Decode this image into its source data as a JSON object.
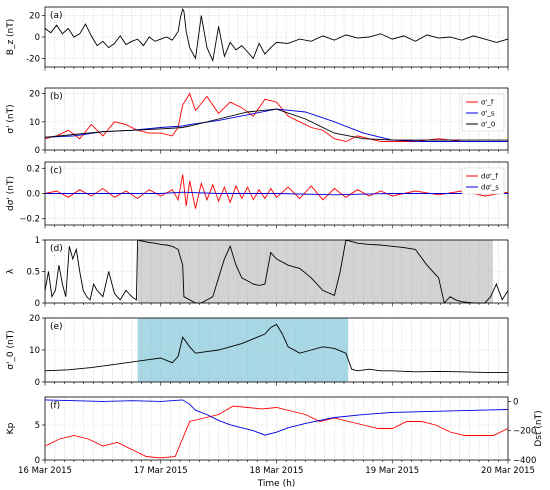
{
  "figure": {
    "shared_x": {
      "label": "Time (h)",
      "range_days": [
        0,
        4
      ],
      "tick_labels": [
        "16 Mar 2015",
        "17 Mar 2015",
        "18 Mar 2015",
        "19 Mar 2015",
        "20 Mar 2015"
      ],
      "tick_values_days": [
        0,
        1,
        2,
        3,
        4
      ],
      "minor_gridlines": "every 2 hours, dotted gray",
      "event_marker_day": 1.19,
      "event_marker_color": "#cc00cc"
    },
    "colors": {
      "red": "#ff0000",
      "blue": "#0000dd",
      "black": "#000000",
      "gray_shade": "#d3d3d3",
      "blue_shade": "#a8d8e6",
      "magenta": "#cc00cc"
    }
  },
  "chart_data": [
    {
      "panel": "(a)",
      "type": "line",
      "ylabel": "B_z (nT)",
      "ylim": [
        -28,
        28
      ],
      "yticks": [
        -20,
        0,
        20
      ],
      "grid": true,
      "series": [
        {
          "color": "#000000",
          "x": [
            0.0,
            0.05,
            0.1,
            0.15,
            0.2,
            0.25,
            0.3,
            0.35,
            0.4,
            0.45,
            0.5,
            0.55,
            0.6,
            0.65,
            0.7,
            0.75,
            0.8,
            0.85,
            0.9,
            0.95,
            1.0,
            1.05,
            1.1,
            1.15,
            1.17,
            1.19,
            1.2,
            1.22,
            1.25,
            1.3,
            1.35,
            1.4,
            1.45,
            1.5,
            1.55,
            1.6,
            1.65,
            1.7,
            1.75,
            1.8,
            1.85,
            1.9,
            1.95,
            2.0,
            2.1,
            2.2,
            2.3,
            2.4,
            2.5,
            2.6,
            2.7,
            2.8,
            2.9,
            3.0,
            3.1,
            3.2,
            3.3,
            3.4,
            3.5,
            3.6,
            3.7,
            3.8,
            3.9,
            4.0
          ],
          "values": [
            8,
            4,
            11,
            3,
            8,
            0,
            3,
            12,
            1,
            -8,
            -4,
            -10,
            -6,
            1,
            -7,
            -4,
            -2,
            -8,
            0,
            -4,
            -2,
            0,
            -3,
            5,
            18,
            26,
            24,
            5,
            -10,
            -20,
            20,
            -10,
            -22,
            10,
            -18,
            -5,
            -12,
            -8,
            -14,
            -20,
            -6,
            -16,
            -10,
            -5,
            -6,
            -2,
            -4,
            1,
            -3,
            2,
            -1,
            0,
            3,
            -2,
            1,
            -4,
            2,
            -1,
            0,
            -3,
            1,
            -2,
            -5,
            -2
          ]
        }
      ]
    },
    {
      "panel": "(b)",
      "type": "line",
      "ylabel": "σ' (nT)",
      "ylim": [
        0,
        22
      ],
      "yticks": [
        0,
        10,
        20
      ],
      "grid": true,
      "legend_position": "top-right",
      "legend": [
        "σ'_f",
        "σ'_s",
        "σ'_0"
      ],
      "series": [
        {
          "name": "σ'_f",
          "color": "#ff0000",
          "x": [
            0.0,
            0.1,
            0.2,
            0.3,
            0.4,
            0.5,
            0.6,
            0.7,
            0.8,
            0.9,
            1.0,
            1.1,
            1.15,
            1.19,
            1.25,
            1.3,
            1.4,
            1.5,
            1.6,
            1.7,
            1.8,
            1.9,
            2.0,
            2.1,
            2.2,
            2.3,
            2.4,
            2.5,
            2.6,
            2.7,
            2.8,
            2.9,
            3.0,
            3.2,
            3.4,
            3.6,
            3.8,
            4.0
          ],
          "values": [
            4,
            5,
            7,
            4,
            9,
            5,
            10,
            9,
            7,
            6,
            6,
            5,
            8,
            16,
            20,
            14,
            19,
            13,
            17,
            15,
            12,
            18,
            17,
            12,
            10,
            8,
            7,
            4,
            3,
            5,
            4,
            3,
            3,
            3,
            4,
            3,
            3,
            3
          ]
        },
        {
          "name": "σ'_s",
          "color": "#0000dd",
          "x": [
            0.0,
            0.25,
            0.5,
            0.75,
            1.0,
            1.19,
            1.25,
            1.5,
            1.75,
            2.0,
            2.25,
            2.5,
            2.75,
            3.0,
            3.25,
            3.5,
            3.75,
            4.0
          ],
          "values": [
            4.5,
            5,
            6.5,
            7,
            8,
            8.5,
            9,
            10.5,
            12.5,
            14.5,
            13.5,
            10,
            6,
            3.5,
            3,
            3,
            3,
            3
          ]
        },
        {
          "name": "σ'_0",
          "color": "#000000",
          "x": [
            0.0,
            0.25,
            0.5,
            0.75,
            1.0,
            1.19,
            1.25,
            1.5,
            1.75,
            2.0,
            2.25,
            2.5,
            2.75,
            3.0,
            3.25,
            3.5,
            3.75,
            4.0
          ],
          "values": [
            4.5,
            5.5,
            6.5,
            7,
            7.5,
            8,
            8.5,
            11,
            13.5,
            14.5,
            11,
            6,
            4,
            3.5,
            3.5,
            3.5,
            3.5,
            3.5
          ]
        }
      ]
    },
    {
      "panel": "(c)",
      "type": "line",
      "ylabel": "dσ' (nT)",
      "ylim": [
        -0.25,
        0.25
      ],
      "yticks": [
        -0.2,
        0.0,
        0.2
      ],
      "ytick_labels": [
        "−0.2",
        "0.0",
        "0.2"
      ],
      "grid": true,
      "legend_position": "top-right",
      "legend": [
        "dσ'_f",
        "dσ'_s"
      ],
      "series": [
        {
          "name": "dσ'_f",
          "color": "#ff0000",
          "x": [
            0.0,
            0.1,
            0.2,
            0.3,
            0.4,
            0.5,
            0.6,
            0.7,
            0.8,
            0.9,
            1.0,
            1.1,
            1.15,
            1.19,
            1.22,
            1.25,
            1.3,
            1.35,
            1.4,
            1.45,
            1.5,
            1.55,
            1.6,
            1.65,
            1.7,
            1.75,
            1.8,
            1.85,
            1.9,
            1.95,
            2.0,
            2.1,
            2.2,
            2.3,
            2.4,
            2.5,
            2.6,
            2.7,
            2.8,
            2.9,
            3.0,
            3.2,
            3.4,
            3.6,
            3.8,
            4.0
          ],
          "values": [
            0.0,
            0.02,
            -0.03,
            0.03,
            -0.02,
            0.04,
            -0.03,
            0.02,
            -0.04,
            0.03,
            -0.02,
            0.03,
            -0.05,
            0.15,
            -0.1,
            0.1,
            -0.12,
            0.08,
            -0.05,
            0.07,
            -0.06,
            0.05,
            -0.07,
            0.06,
            -0.04,
            0.05,
            -0.05,
            0.03,
            -0.04,
            0.04,
            -0.03,
            0.05,
            -0.04,
            0.06,
            -0.05,
            0.04,
            -0.03,
            0.03,
            -0.02,
            0.02,
            -0.02,
            0.02,
            -0.01,
            0.02,
            -0.02,
            0.01
          ]
        },
        {
          "name": "dσ'_s",
          "color": "#0000dd",
          "x": [
            0.0,
            0.5,
            1.0,
            1.19,
            1.5,
            2.0,
            2.5,
            3.0,
            3.5,
            4.0
          ],
          "values": [
            0.0,
            0.0,
            0.0,
            0.01,
            0.0,
            0.0,
            -0.01,
            0.0,
            0.0,
            0.0
          ]
        }
      ]
    },
    {
      "panel": "(d)",
      "type": "line",
      "ylabel": "λ",
      "ylim": [
        0,
        1.0
      ],
      "yticks": [
        0.0,
        0.5,
        1.0
      ],
      "grid": true,
      "shaded_interval_days": [
        0.8,
        3.87
      ],
      "shade_color": "#d3d3d3",
      "series": [
        {
          "color": "#000000",
          "x": [
            0.0,
            0.03,
            0.06,
            0.09,
            0.12,
            0.15,
            0.18,
            0.21,
            0.24,
            0.27,
            0.3,
            0.33,
            0.36,
            0.39,
            0.42,
            0.45,
            0.5,
            0.55,
            0.6,
            0.65,
            0.7,
            0.75,
            0.79,
            0.8,
            0.85,
            0.9,
            0.95,
            1.0,
            1.05,
            1.1,
            1.15,
            1.19,
            1.2,
            1.25,
            1.3,
            1.35,
            1.4,
            1.45,
            1.5,
            1.55,
            1.6,
            1.65,
            1.7,
            1.75,
            1.8,
            1.85,
            1.9,
            1.95,
            2.0,
            2.1,
            2.2,
            2.3,
            2.4,
            2.5,
            2.55,
            2.6,
            2.7,
            2.8,
            2.9,
            3.0,
            3.1,
            3.2,
            3.3,
            3.4,
            3.45,
            3.5,
            3.55,
            3.6,
            3.7,
            3.8,
            3.85,
            3.9,
            3.95,
            4.0
          ],
          "values": [
            0.2,
            0.5,
            0.1,
            0.2,
            0.6,
            0.3,
            0.1,
            0.9,
            0.7,
            0.85,
            0.5,
            0.2,
            0.1,
            0.05,
            0.3,
            0.2,
            0.1,
            0.5,
            0.15,
            0.05,
            0.2,
            0.1,
            0.05,
            1.0,
            0.98,
            0.96,
            0.95,
            0.93,
            0.92,
            0.9,
            0.85,
            0.6,
            0.1,
            0.05,
            0.0,
            0.0,
            0.05,
            0.1,
            0.4,
            0.7,
            0.9,
            0.6,
            0.4,
            0.35,
            0.3,
            0.28,
            0.3,
            0.8,
            0.7,
            0.6,
            0.55,
            0.4,
            0.2,
            0.12,
            0.5,
            1.0,
            0.95,
            0.93,
            0.92,
            0.9,
            0.88,
            0.85,
            0.6,
            0.4,
            0.0,
            0.1,
            0.05,
            0.02,
            0.0,
            0.0,
            0.1,
            0.3,
            0.05,
            0.2
          ]
        }
      ]
    },
    {
      "panel": "(e)",
      "type": "line",
      "ylabel": "σ'_0 (nT)",
      "ylim": [
        0,
        20
      ],
      "yticks": [
        0,
        10,
        20
      ],
      "grid": true,
      "shaded_interval_days": [
        0.8,
        2.62
      ],
      "shade_color": "#a8d8e6",
      "series": [
        {
          "color": "#000000",
          "x": [
            0.0,
            0.2,
            0.4,
            0.6,
            0.7,
            0.8,
            0.9,
            1.0,
            1.1,
            1.15,
            1.19,
            1.25,
            1.3,
            1.4,
            1.5,
            1.6,
            1.7,
            1.8,
            1.9,
            1.95,
            2.0,
            2.05,
            2.1,
            2.2,
            2.3,
            2.4,
            2.5,
            2.6,
            2.65,
            2.7,
            2.8,
            2.9,
            3.0,
            3.2,
            3.4,
            3.6,
            3.8,
            4.0
          ],
          "values": [
            3.5,
            3.8,
            4.5,
            5.5,
            6,
            6.5,
            7,
            7.5,
            6,
            8,
            14,
            11,
            9,
            9.5,
            10,
            11,
            12,
            13.5,
            15,
            17,
            18,
            15,
            11,
            9,
            10,
            11,
            10.5,
            9,
            4,
            3.5,
            4,
            3.5,
            3.5,
            3.2,
            3.3,
            3.2,
            3,
            3
          ]
        }
      ]
    },
    {
      "panel": "(f)",
      "type": "line",
      "ylabel": "Kp",
      "ylabel_right": "Dst (nT)",
      "ylim": [
        0,
        9
      ],
      "yticks": [
        0,
        5
      ],
      "ylim_right": [
        -400,
        30
      ],
      "yticks_right": [
        0,
        -200,
        -400
      ],
      "ytick_labels_right": [
        "0",
        "−200",
        "−400"
      ],
      "grid": true,
      "series": [
        {
          "name": "Kp",
          "color": "#ff0000",
          "x": [
            0.0,
            0.125,
            0.25,
            0.375,
            0.5,
            0.625,
            0.75,
            0.875,
            1.0,
            1.125,
            1.25,
            1.375,
            1.5,
            1.625,
            1.75,
            1.875,
            2.0,
            2.125,
            2.25,
            2.375,
            2.5,
            2.625,
            2.75,
            2.875,
            3.0,
            3.125,
            3.25,
            3.375,
            3.5,
            3.625,
            3.75,
            3.875,
            4.0
          ],
          "values": [
            2,
            3,
            3.5,
            3,
            2,
            2.5,
            1.5,
            0.5,
            0.3,
            0.5,
            5.5,
            6,
            6.5,
            7.7,
            7.5,
            7.3,
            7.5,
            7,
            6.5,
            5.5,
            6,
            5.5,
            5,
            4.5,
            4.5,
            5.5,
            5.5,
            5,
            4,
            3.5,
            3.5,
            3.5,
            4.5
          ]
        },
        {
          "name": "Dst",
          "color": "#0000dd",
          "axis": "right",
          "x": [
            0.0,
            0.25,
            0.5,
            0.75,
            1.0,
            1.19,
            1.25,
            1.3,
            1.4,
            1.5,
            1.6,
            1.7,
            1.8,
            1.9,
            2.0,
            2.1,
            2.25,
            2.5,
            2.75,
            3.0,
            3.25,
            3.5,
            3.75,
            4.0
          ],
          "values": [
            10,
            5,
            0,
            5,
            0,
            10,
            -20,
            -60,
            -90,
            -130,
            -160,
            -180,
            -200,
            -230,
            -210,
            -180,
            -150,
            -110,
            -90,
            -75,
            -70,
            -65,
            -60,
            -55
          ]
        }
      ]
    }
  ]
}
